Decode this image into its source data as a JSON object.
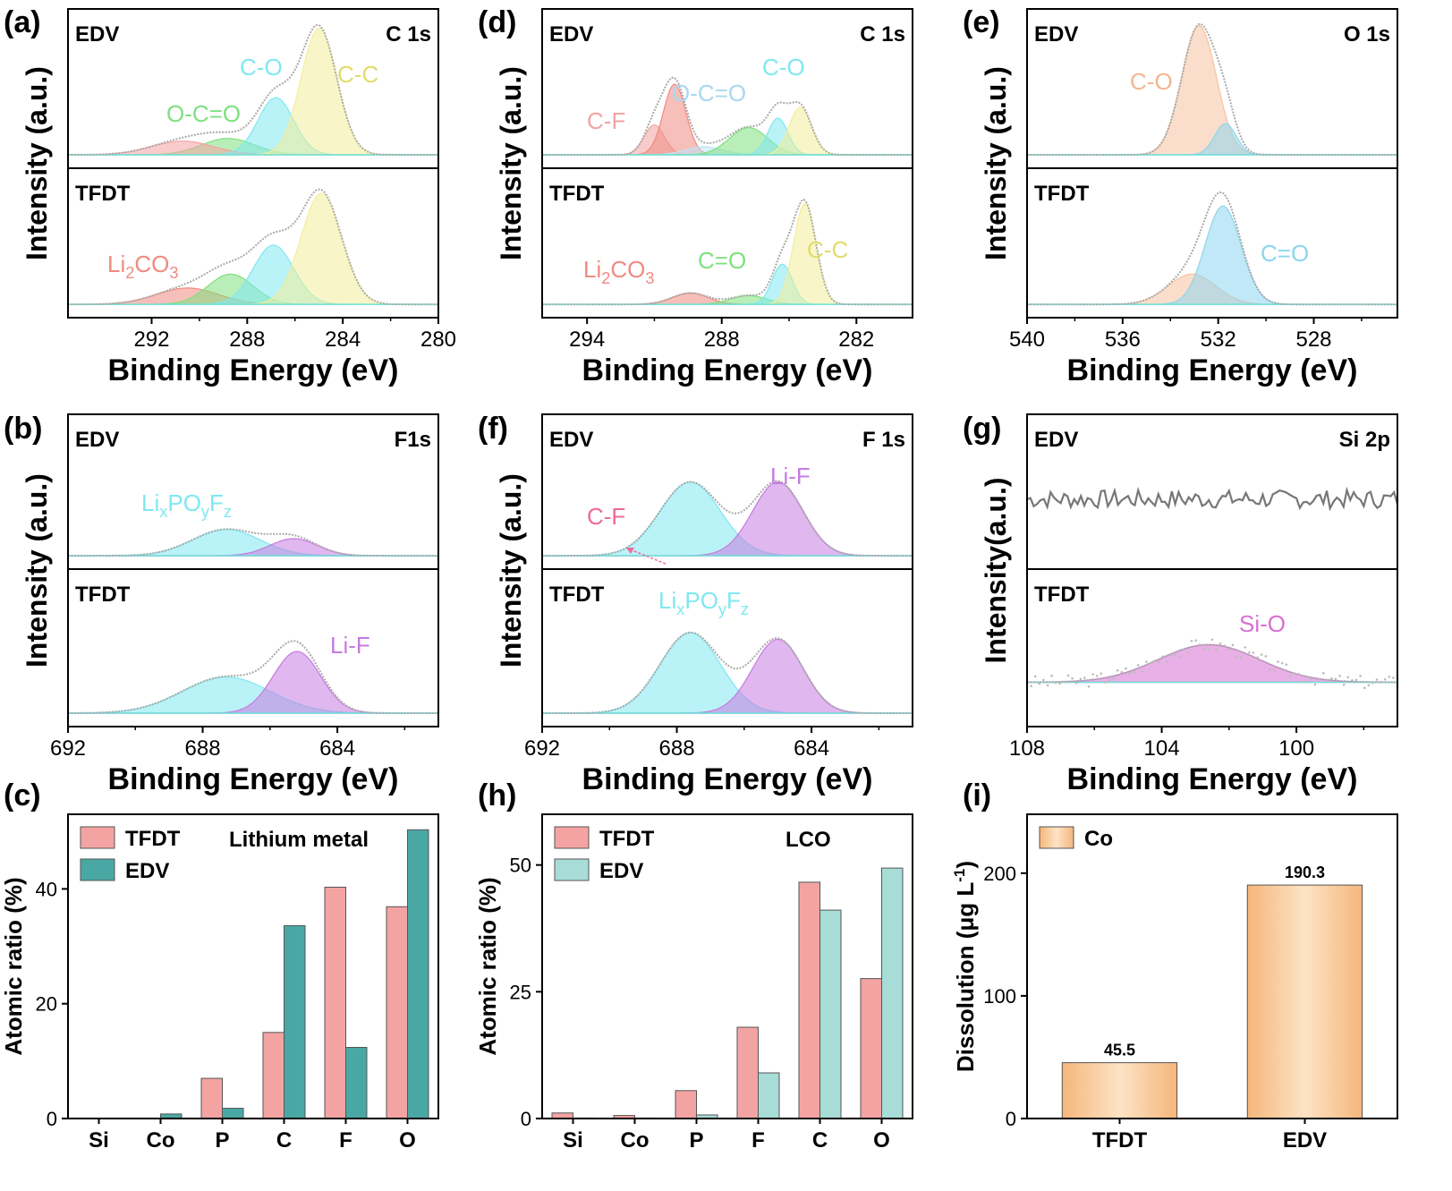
{
  "figure": {
    "panels": [
      "(a)",
      "(b)",
      "(c)",
      "(d)",
      "(e)",
      "(f)",
      "(g)",
      "(h)",
      "(i)"
    ]
  },
  "colors": {
    "pink": "#f4a3a3",
    "salmon": "#f08a80",
    "green": "#7fe07f",
    "cyan": "#7fe8f0",
    "yellow": "#f2ee9a",
    "peach": "#f6c2a0",
    "skyblue": "#8ed6ee",
    "purple": "#c67be0",
    "magenta": "#d770d3",
    "lightblue": "#bfe3f5",
    "teal": "#4aa8a4",
    "mint": "#a8dcd7",
    "orange": "#f7c48f",
    "envelope": "#aaaaaa",
    "noise": "#777777"
  },
  "chart_data": [
    {
      "panel": "(a)",
      "type": "line",
      "element": "C 1s",
      "xlabel": "Binding Energy (eV)",
      "ylabel": "Intensity (a.u.)",
      "xlim": [
        295.5,
        280
      ],
      "xticks": [
        292,
        288,
        284,
        280
      ],
      "top": {
        "label": "EDV",
        "range": [
          0,
          1
        ],
        "baseline": 0.02,
        "peaks": [
          {
            "name": "O-C=O",
            "center": 288.8,
            "height": 0.12,
            "sigma": 1.1,
            "color": "green",
            "labeled": true
          },
          {
            "name": "",
            "center": 290.7,
            "height": 0.1,
            "sigma": 1.3,
            "color": "pink",
            "labeled": false
          },
          {
            "name": "C-O",
            "center": 286.8,
            "height": 0.42,
            "sigma": 0.75,
            "color": "cyan",
            "labeled": true
          },
          {
            "name": "C-C",
            "center": 285.0,
            "height": 0.93,
            "sigma": 0.75,
            "color": "yellow",
            "labeled": true
          }
        ]
      },
      "bottom": {
        "label": "TFDT",
        "range": [
          0,
          1
        ],
        "baseline": 0.02,
        "peaks": [
          {
            "name": "Li2CO3",
            "center": 290.5,
            "height": 0.13,
            "sigma": 1.3,
            "color": "salmon",
            "labeled": true
          },
          {
            "name": "",
            "center": 288.7,
            "height": 0.24,
            "sigma": 0.95,
            "color": "green",
            "labeled": false
          },
          {
            "name": "",
            "center": 286.9,
            "height": 0.47,
            "sigma": 0.85,
            "color": "cyan",
            "labeled": false
          },
          {
            "name": "",
            "center": 284.9,
            "height": 0.88,
            "sigma": 0.85,
            "color": "yellow",
            "labeled": false
          }
        ]
      }
    },
    {
      "panel": "(b)",
      "type": "line",
      "element": "F1s",
      "xlabel": "Binding Energy (eV)",
      "ylabel": "Intensity (a.u.)",
      "xlim": [
        692,
        681
      ],
      "xticks": [
        692,
        688,
        684
      ],
      "top": {
        "label": "EDV",
        "range": [
          0,
          1
        ],
        "baseline": 0.02,
        "peaks": [
          {
            "name": "LixPOyFz",
            "center": 687.3,
            "height": 0.2,
            "sigma": 1.0,
            "color": "cyan",
            "labeled": true
          },
          {
            "name": "",
            "center": 685.3,
            "height": 0.13,
            "sigma": 0.7,
            "color": "purple",
            "labeled": false
          }
        ]
      },
      "bottom": {
        "label": "TFDT",
        "range": [
          0,
          1
        ],
        "baseline": 0.02,
        "peaks": [
          {
            "name": "",
            "center": 687.3,
            "height": 0.27,
            "sigma": 1.3,
            "color": "cyan",
            "labeled": false
          },
          {
            "name": "Li-F",
            "center": 685.2,
            "height": 0.46,
            "sigma": 0.7,
            "color": "purple",
            "labeled": true
          }
        ]
      }
    },
    {
      "panel": "(c)",
      "type": "bar",
      "title": "Lithium metal",
      "xlabel": "",
      "ylabel": "Atomic ratio (%)",
      "categories": [
        "Si",
        "Co",
        "P",
        "C",
        "F",
        "O"
      ],
      "ylim": [
        0,
        53
      ],
      "yticks": [
        0,
        20,
        40
      ],
      "series": [
        {
          "name": "TFDT",
          "values": [
            0,
            0,
            7,
            15,
            40.3,
            36.9
          ],
          "color": "pink"
        },
        {
          "name": "EDV",
          "values": [
            0,
            0.8,
            1.8,
            33.6,
            12.4,
            50.3
          ],
          "color": "teal"
        }
      ]
    },
    {
      "panel": "(d)",
      "type": "line",
      "element": "C 1s",
      "xlabel": "Binding Energy (eV)",
      "ylabel": "Intensity (a.u.)",
      "xlim": [
        296,
        279.5
      ],
      "xticks": [
        294,
        288,
        282
      ],
      "top": {
        "label": "EDV",
        "range": [
          0,
          1
        ],
        "baseline": 0.02,
        "peaks": [
          {
            "name": "C-F",
            "center": 291.0,
            "height": 0.22,
            "sigma": 0.45,
            "color": "pink",
            "labeled": true
          },
          {
            "name": "",
            "center": 290.1,
            "height": 0.52,
            "sigma": 0.5,
            "color": "salmon",
            "labeled": false
          },
          {
            "name": "O-C=O",
            "center": 288.8,
            "height": 0.06,
            "sigma": 0.8,
            "color": "lightblue",
            "labeled": true
          },
          {
            "name": "",
            "center": 286.8,
            "height": 0.2,
            "sigma": 0.85,
            "color": "green",
            "labeled": false
          },
          {
            "name": "C-O",
            "center": 285.5,
            "height": 0.27,
            "sigma": 0.45,
            "color": "cyan",
            "labeled": true
          },
          {
            "name": "",
            "center": 284.5,
            "height": 0.35,
            "sigma": 0.5,
            "color": "yellow",
            "labeled": false
          }
        ]
      },
      "bottom": {
        "label": "TFDT",
        "range": [
          0,
          1
        ],
        "baseline": 0.02,
        "peaks": [
          {
            "name": "Li2CO3",
            "center": 289.4,
            "height": 0.09,
            "sigma": 0.8,
            "color": "salmon",
            "labeled": true
          },
          {
            "name": "C=O",
            "center": 286.8,
            "height": 0.07,
            "sigma": 0.8,
            "color": "green",
            "labeled": true
          },
          {
            "name": "",
            "center": 285.3,
            "height": 0.32,
            "sigma": 0.45,
            "color": "cyan",
            "labeled": false
          },
          {
            "name": "C-C",
            "center": 284.3,
            "height": 0.8,
            "sigma": 0.5,
            "color": "yellow",
            "labeled": true
          }
        ]
      }
    },
    {
      "panel": "(e)",
      "type": "line",
      "element": "O 1s",
      "xlabel": "Binding Energy (eV)",
      "ylabel": "Intensity (a.u.)",
      "xlim": [
        540,
        524.5
      ],
      "xticks": [
        540,
        536,
        532,
        528
      ],
      "top": {
        "label": "EDV",
        "range": [
          0,
          1
        ],
        "baseline": 0.02,
        "peaks": [
          {
            "name": "C-O",
            "center": 532.8,
            "height": 0.95,
            "sigma": 0.72,
            "color": "peach",
            "labeled": true
          },
          {
            "name": "",
            "center": 531.7,
            "height": 0.23,
            "sigma": 0.45,
            "color": "skyblue",
            "labeled": false
          }
        ]
      },
      "bottom": {
        "label": "TFDT",
        "range": [
          0,
          1
        ],
        "baseline": 0.02,
        "peaks": [
          {
            "name": "",
            "center": 533.1,
            "height": 0.24,
            "sigma": 1.0,
            "color": "peach",
            "labeled": false
          },
          {
            "name": "C=O",
            "center": 531.8,
            "height": 0.78,
            "sigma": 0.75,
            "color": "skyblue",
            "labeled": true
          }
        ]
      }
    },
    {
      "panel": "(f)",
      "type": "line",
      "element": "F 1s",
      "xlabel": "Binding Energy (eV)",
      "ylabel": "Intensity (a.u.)",
      "xlim": [
        692,
        681
      ],
      "xticks": [
        692,
        688,
        684
      ],
      "top": {
        "label": "EDV",
        "range": [
          0,
          1
        ],
        "baseline": 0.02,
        "peaks": [
          {
            "name": "",
            "center": 687.6,
            "height": 0.56,
            "sigma": 0.9,
            "color": "cyan",
            "labeled": false
          },
          {
            "name": "Li-F",
            "center": 685.0,
            "height": 0.56,
            "sigma": 0.75,
            "color": "purple",
            "labeled": true
          }
        ],
        "annotation": "C-F"
      },
      "bottom": {
        "label": "TFDT",
        "range": [
          0,
          1
        ],
        "baseline": 0.02,
        "peaks": [
          {
            "name": "LixPOyFz",
            "center": 687.6,
            "height": 0.6,
            "sigma": 0.9,
            "color": "cyan",
            "labeled": true
          },
          {
            "name": "",
            "center": 685.0,
            "height": 0.55,
            "sigma": 0.75,
            "color": "purple",
            "labeled": false
          }
        ]
      }
    },
    {
      "panel": "(g)",
      "type": "line",
      "element": "Si 2p",
      "xlabel": "Binding Energy (eV)",
      "ylabel": "Intensity(a.u.)",
      "xlim": [
        108,
        97
      ],
      "xticks": [
        108,
        104,
        100
      ],
      "top": {
        "label": "EDV",
        "range": [
          0,
          1
        ],
        "noise_level": 0.45
      },
      "bottom": {
        "label": "TFDT",
        "range": [
          0,
          1
        ],
        "baseline": 0.25,
        "peaks": [
          {
            "name": "Si-O",
            "center": 102.6,
            "height": 0.28,
            "sigma": 1.5,
            "color": "magenta",
            "labeled": true
          }
        ]
      }
    },
    {
      "panel": "(h)",
      "type": "bar",
      "title": "LCO",
      "xlabel": "",
      "ylabel": "Atomic ratio (%)",
      "categories": [
        "Si",
        "Co",
        "P",
        "F",
        "C",
        "O"
      ],
      "ylim": [
        0,
        60
      ],
      "yticks": [
        0,
        25,
        50
      ],
      "series": [
        {
          "name": "TFDT",
          "values": [
            1.1,
            0.6,
            5.5,
            18,
            46.6,
            27.6
          ],
          "color": "pink"
        },
        {
          "name": "EDV",
          "values": [
            0.1,
            0.1,
            0.7,
            9.0,
            41.1,
            49.4
          ],
          "color": "mint"
        }
      ]
    },
    {
      "panel": "(i)",
      "type": "bar",
      "title": "",
      "xlabel": "",
      "ylabel": "Dissolution (μg L-1)",
      "categories": [
        "TFDT",
        "EDV"
      ],
      "ylim": [
        0,
        248
      ],
      "yticks": [
        0,
        100,
        200
      ],
      "series": [
        {
          "name": "Co",
          "values": [
            45.5,
            190.3
          ],
          "color": "orange"
        }
      ],
      "data_labels": [
        "45.5",
        "190.3"
      ]
    }
  ]
}
